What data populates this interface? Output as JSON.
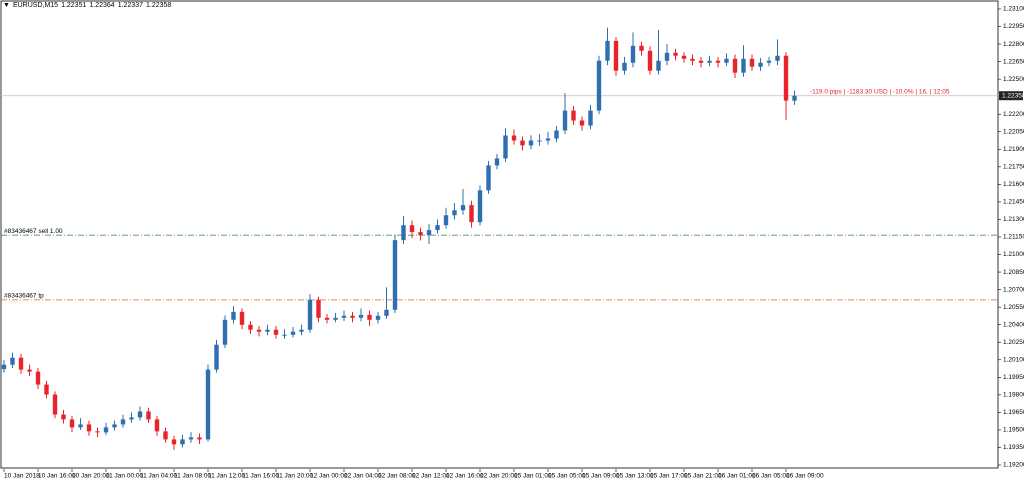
{
  "chart_data": {
    "type": "candlestick",
    "symbol": "EURUSD,M15",
    "header_ohlc": [
      1.22351,
      1.22364,
      1.22337,
      1.22358
    ],
    "info_text": "-119.0 pips | -1183.30 USD | -10.0% | 16. | 12:05",
    "up_color": "#2f6fb0",
    "down_color": "#e8232a",
    "grid": false,
    "current_price": 1.22358,
    "levels": [
      {
        "label": "#83436467 sell 1.00",
        "value": 1.21166,
        "color": "#2e7d4f"
      },
      {
        "label": "#83436467 tp",
        "value": 1.20612,
        "color": "#e0602a"
      }
    ],
    "ylim": [
      1.19166,
      1.23168
    ],
    "yticks": [
      {
        "value": 1.231,
        "label": "1.23100"
      },
      {
        "value": 1.2295,
        "label": "1.22950"
      },
      {
        "value": 1.228,
        "label": "1.22800"
      },
      {
        "value": 1.2265,
        "label": "1.22650"
      },
      {
        "value": 1.225,
        "label": "1.22500"
      },
      {
        "value": 1.222,
        "label": "1.22200"
      },
      {
        "value": 1.2205,
        "label": "1.22050"
      },
      {
        "value": 1.219,
        "label": "1.21900"
      },
      {
        "value": 1.2175,
        "label": "1.21750"
      },
      {
        "value": 1.216,
        "label": "1.21600"
      },
      {
        "value": 1.2145,
        "label": "1.21450"
      },
      {
        "value": 1.213,
        "label": "1.21300"
      },
      {
        "value": 1.2115,
        "label": "1.21150"
      },
      {
        "value": 1.21,
        "label": "1.21000"
      },
      {
        "value": 1.2085,
        "label": "1.20850"
      },
      {
        "value": 1.207,
        "label": "1.20700"
      },
      {
        "value": 1.2055,
        "label": "1.20550"
      },
      {
        "value": 1.204,
        "label": "1.20400"
      },
      {
        "value": 1.2025,
        "label": "1.20250"
      },
      {
        "value": 1.201,
        "label": "1.20100"
      },
      {
        "value": 1.1995,
        "label": "1.19950"
      },
      {
        "value": 1.198,
        "label": "1.19800"
      },
      {
        "value": 1.1965,
        "label": "1.19650"
      },
      {
        "value": 1.195,
        "label": "1.19500"
      },
      {
        "value": 1.1935,
        "label": "1.19350"
      },
      {
        "value": 1.192,
        "label": "1.19200"
      }
    ],
    "xticks": [
      {
        "value": 0,
        "label": "10 Jan 2018"
      },
      {
        "value": 4,
        "label": "10 Jan 16:00"
      },
      {
        "value": 8,
        "label": "10 Jan 20:00"
      },
      {
        "value": 12,
        "label": "11 Jan 00:00"
      },
      {
        "value": 16,
        "label": "11 Jan 04:00"
      },
      {
        "value": 20,
        "label": "11 Jan 08:00"
      },
      {
        "value": 24,
        "label": "11 Jan 12:00"
      },
      {
        "value": 28,
        "label": "11 Jan 16:00"
      },
      {
        "value": 32,
        "label": "11 Jan 20:00"
      },
      {
        "value": 36,
        "label": "12 Jan 00:00"
      },
      {
        "value": 40,
        "label": "12 Jan 04:00"
      },
      {
        "value": 44,
        "label": "12 Jan 08:00"
      },
      {
        "value": 48,
        "label": "12 Jan 12:00"
      },
      {
        "value": 52,
        "label": "12 Jan 16:00"
      },
      {
        "value": 56,
        "label": "12 Jan 20:00"
      },
      {
        "value": 60,
        "label": "15 Jan 01:00"
      },
      {
        "value": 64,
        "label": "15 Jan 05:00"
      },
      {
        "value": 68,
        "label": "15 Jan 09:00"
      },
      {
        "value": 72,
        "label": "15 Jan 13:00"
      },
      {
        "value": 76,
        "label": "15 Jan 17:00"
      },
      {
        "value": 80,
        "label": "15 Jan 21:00"
      },
      {
        "value": 84,
        "label": "16 Jan 01:00"
      },
      {
        "value": 88,
        "label": "16 Jan 05:00"
      },
      {
        "value": 92,
        "label": "16 Jan 09:00"
      }
    ],
    "open": [
      1.2002,
      1.20058,
      1.20118,
      1.20016,
      1.19999,
      1.19888,
      1.19803,
      1.19632,
      1.1959,
      1.19522,
      1.19547,
      1.19488,
      1.19479,
      1.19522,
      1.19547,
      1.1959,
      1.19607,
      1.19658,
      1.1959,
      1.19488,
      1.19419,
      1.19377,
      1.19419,
      1.19436,
      1.19419,
      1.20016,
      1.20229,
      1.20442,
      1.2051,
      1.20399,
      1.20357,
      1.2034,
      1.20357,
      1.20314,
      1.20314,
      1.2034,
      1.20357,
      1.20612,
      1.20459,
      1.20442,
      1.20459,
      1.20476,
      1.20459,
      1.20484,
      1.20442,
      1.20476,
      1.20527,
      1.21123,
      1.21251,
      1.21192,
      1.21166,
      1.21209,
      1.21251,
      1.21336,
      1.21379,
      1.21422,
      1.21277,
      1.21549,
      1.21762,
      1.21822,
      1.22018,
      1.21975,
      1.21933,
      1.21975,
      1.21975,
      1.21992,
      1.22061,
      1.22231,
      1.22146,
      1.22103,
      1.22231,
      1.22657,
      1.22827,
      1.22572,
      1.2264,
      1.22785,
      1.22742,
      1.22572,
      1.22657,
      1.22725,
      1.227,
      1.22674,
      1.22657,
      1.2264,
      1.22657,
      1.2264,
      1.22674,
      1.22555,
      1.22674,
      1.22606,
      1.2264,
      1.22657,
      1.227,
      1.22316
    ],
    "high": [
      1.20098,
      1.2016,
      1.2015,
      1.2006,
      1.2003,
      1.1992,
      1.1983,
      1.1967,
      1.1962,
      1.196,
      1.1958,
      1.1952,
      1.1956,
      1.1958,
      1.1963,
      1.1965,
      1.197,
      1.1969,
      1.1962,
      1.1952,
      1.1945,
      1.1946,
      1.1948,
      1.1947,
      1.2006,
      1.2027,
      1.2048,
      1.2056,
      1.2054,
      1.2043,
      1.2039,
      1.204,
      1.2039,
      1.2036,
      1.2038,
      1.204,
      1.2066,
      1.2064,
      1.2049,
      1.205,
      1.2052,
      1.2051,
      1.2054,
      1.2052,
      1.2051,
      1.2072,
      1.2117,
      1.2133,
      1.2129,
      1.2123,
      1.2126,
      1.213,
      1.214,
      1.2144,
      1.2156,
      1.2146,
      1.2159,
      1.218,
      1.2186,
      1.2208,
      1.2207,
      1.2201,
      1.2202,
      1.2203,
      1.2205,
      1.221,
      1.2238,
      1.2227,
      1.2218,
      1.2228,
      1.227,
      1.2294,
      1.2286,
      1.2269,
      1.229,
      1.2282,
      1.2278,
      1.2292,
      1.228,
      1.2276,
      1.2273,
      1.2271,
      1.2269,
      1.227,
      1.2269,
      1.2272,
      1.2271,
      1.2279,
      1.2271,
      1.2268,
      1.2269,
      1.2284,
      1.2273,
      1.224
    ],
    "low": [
      1.1999,
      1.2003,
      1.1998,
      1.1996,
      1.1985,
      1.1977,
      1.196,
      1.19555,
      1.1948,
      1.195,
      1.1945,
      1.1944,
      1.19455,
      1.19495,
      1.1952,
      1.1956,
      1.1958,
      1.1956,
      1.1945,
      1.1939,
      1.1933,
      1.1935,
      1.1939,
      1.1938,
      1.194,
      1.1999,
      1.202,
      1.2041,
      1.2036,
      1.2032,
      1.203,
      1.2031,
      1.2028,
      1.2028,
      1.2029,
      1.2031,
      1.2033,
      1.2042,
      1.2041,
      1.2042,
      1.2043,
      1.2042,
      1.2043,
      1.2039,
      1.2041,
      1.2045,
      1.205,
      1.2109,
      1.2114,
      1.2112,
      1.2109,
      1.2118,
      1.2122,
      1.213,
      1.2134,
      1.2123,
      1.2125,
      1.2152,
      1.2173,
      1.2179,
      1.2194,
      1.2189,
      1.219,
      1.2193,
      1.2194,
      1.2196,
      1.2203,
      1.2211,
      1.2206,
      1.2207,
      1.222,
      1.2262,
      1.2253,
      1.2254,
      1.226,
      1.227,
      1.2254,
      1.2254,
      1.2262,
      1.2266,
      1.2264,
      1.2262,
      1.226,
      1.2261,
      1.226,
      1.2261,
      1.2251,
      1.2252,
      1.2257,
      1.2257,
      1.2261,
      1.2262,
      1.2215,
      1.2228
    ],
    "close": [
      1.20058,
      1.20118,
      1.20016,
      1.19999,
      1.19888,
      1.19803,
      1.19632,
      1.1959,
      1.19522,
      1.19547,
      1.19488,
      1.19479,
      1.19522,
      1.19547,
      1.1959,
      1.19607,
      1.19658,
      1.1959,
      1.19488,
      1.19419,
      1.19377,
      1.19419,
      1.19436,
      1.19419,
      1.20016,
      1.20229,
      1.20442,
      1.2051,
      1.20399,
      1.20357,
      1.2034,
      1.20357,
      1.20314,
      1.20314,
      1.2034,
      1.20357,
      1.20612,
      1.20459,
      1.20442,
      1.20459,
      1.20476,
      1.20459,
      1.20484,
      1.20442,
      1.20476,
      1.20527,
      1.21123,
      1.21251,
      1.21192,
      1.21166,
      1.21209,
      1.21251,
      1.21336,
      1.21379,
      1.21422,
      1.21277,
      1.21549,
      1.21762,
      1.21822,
      1.22018,
      1.21975,
      1.21933,
      1.21975,
      1.21975,
      1.21992,
      1.22061,
      1.22231,
      1.22146,
      1.22103,
      1.22231,
      1.22657,
      1.22827,
      1.22572,
      1.2264,
      1.22785,
      1.22742,
      1.22572,
      1.22657,
      1.22725,
      1.227,
      1.22674,
      1.22657,
      1.2264,
      1.22657,
      1.2264,
      1.22674,
      1.22555,
      1.22674,
      1.22606,
      1.2264,
      1.22657,
      1.227,
      1.22316,
      1.22358
    ]
  }
}
